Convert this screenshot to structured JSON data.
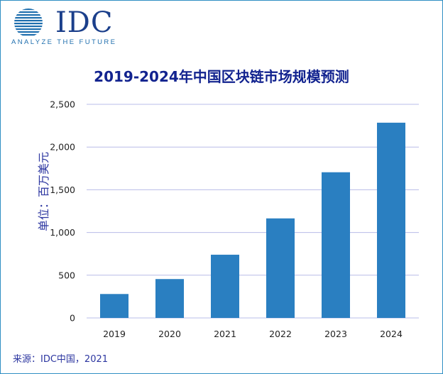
{
  "logo": {
    "wordmark": "IDC",
    "tagline": "ANALYZE THE FUTURE"
  },
  "chart_data": {
    "type": "bar",
    "title": "2019-2024年中国区块链市场规模预测",
    "xlabel": "",
    "ylabel": "单位：百万美元",
    "categories": [
      "2019",
      "2020",
      "2021",
      "2022",
      "2023",
      "2024"
    ],
    "values": [
      280,
      455,
      740,
      1165,
      1705,
      2285
    ],
    "ylim": [
      0,
      2500
    ],
    "yticks": [
      0,
      500,
      1000,
      1500,
      2000,
      2500
    ],
    "ytick_labels": [
      "0",
      "500",
      "1,000",
      "1,500",
      "2,000",
      "2,500"
    ],
    "grid": true,
    "bar_color": "#2a7fc1",
    "grid_color": "#b8bce8"
  },
  "source": "来源：IDC中国，2021"
}
